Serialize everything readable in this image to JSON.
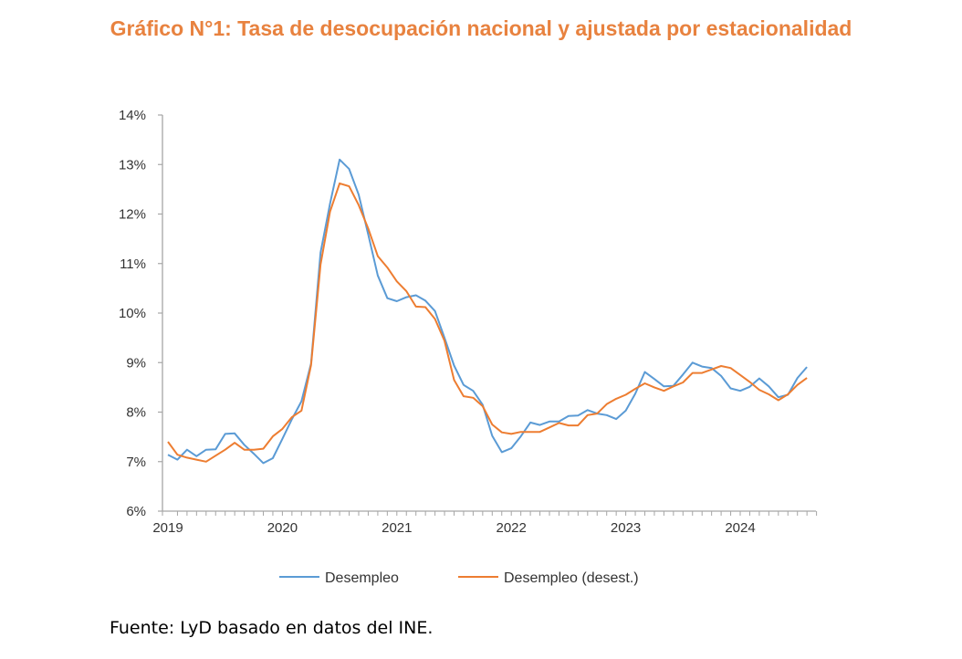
{
  "title": "Gráfico N°1: Tasa de desocupación nacional y ajustada por estacionalidad",
  "footer": "Fuente: LyD basado en datos del INE.",
  "chart_data": {
    "type": "line",
    "title": "Gráfico N°1: Tasa de desocupación nacional y ajustada por estacionalidad",
    "xlabel": "",
    "ylabel": "",
    "frequency": "monthly",
    "start": "2019-01",
    "x_tick_labels": [
      "2019",
      "2020",
      "2021",
      "2022",
      "2023",
      "2024"
    ],
    "y_tick_labels": [
      "6%",
      "7%",
      "8%",
      "9%",
      "10%",
      "11%",
      "12%",
      "13%",
      "14%"
    ],
    "ylim": [
      6,
      14
    ],
    "grid": false,
    "legend_position": "bottom",
    "colors": {
      "Desempleo": "#5B9BD5",
      "Desempleo (desest.)": "#ED7D31"
    },
    "series": [
      {
        "name": "Desempleo",
        "values": [
          7.14,
          7.04,
          7.24,
          7.11,
          7.24,
          7.25,
          7.56,
          7.57,
          7.34,
          7.16,
          6.97,
          7.07,
          7.46,
          7.86,
          8.22,
          8.98,
          11.22,
          12.21,
          13.1,
          12.91,
          12.39,
          11.59,
          10.76,
          10.3,
          10.24,
          10.32,
          10.36,
          10.25,
          10.04,
          9.5,
          8.94,
          8.55,
          8.43,
          8.15,
          7.52,
          7.19,
          7.27,
          7.51,
          7.79,
          7.74,
          7.81,
          7.81,
          7.92,
          7.93,
          8.04,
          7.97,
          7.94,
          7.86,
          8.03,
          8.37,
          8.81,
          8.67,
          8.52,
          8.53,
          8.76,
          9.0,
          8.92,
          8.89,
          8.73,
          8.48,
          8.43,
          8.51,
          8.68,
          8.52,
          8.3,
          8.35,
          8.69,
          8.91
        ]
      },
      {
        "name": "Desempleo (desest.)",
        "values": [
          7.4,
          7.14,
          7.08,
          7.04,
          7.0,
          7.12,
          7.24,
          7.38,
          7.24,
          7.24,
          7.26,
          7.51,
          7.66,
          7.9,
          8.03,
          8.95,
          10.98,
          12.05,
          12.62,
          12.56,
          12.18,
          11.71,
          11.15,
          10.92,
          10.64,
          10.44,
          10.13,
          10.12,
          9.88,
          9.44,
          8.65,
          8.32,
          8.29,
          8.12,
          7.75,
          7.59,
          7.56,
          7.6,
          7.6,
          7.6,
          7.69,
          7.78,
          7.73,
          7.73,
          7.94,
          7.97,
          8.16,
          8.27,
          8.35,
          8.47,
          8.58,
          8.5,
          8.43,
          8.52,
          8.6,
          8.79,
          8.79,
          8.86,
          8.93,
          8.89,
          8.75,
          8.61,
          8.45,
          8.36,
          8.24,
          8.36,
          8.55,
          8.69
        ]
      }
    ]
  }
}
